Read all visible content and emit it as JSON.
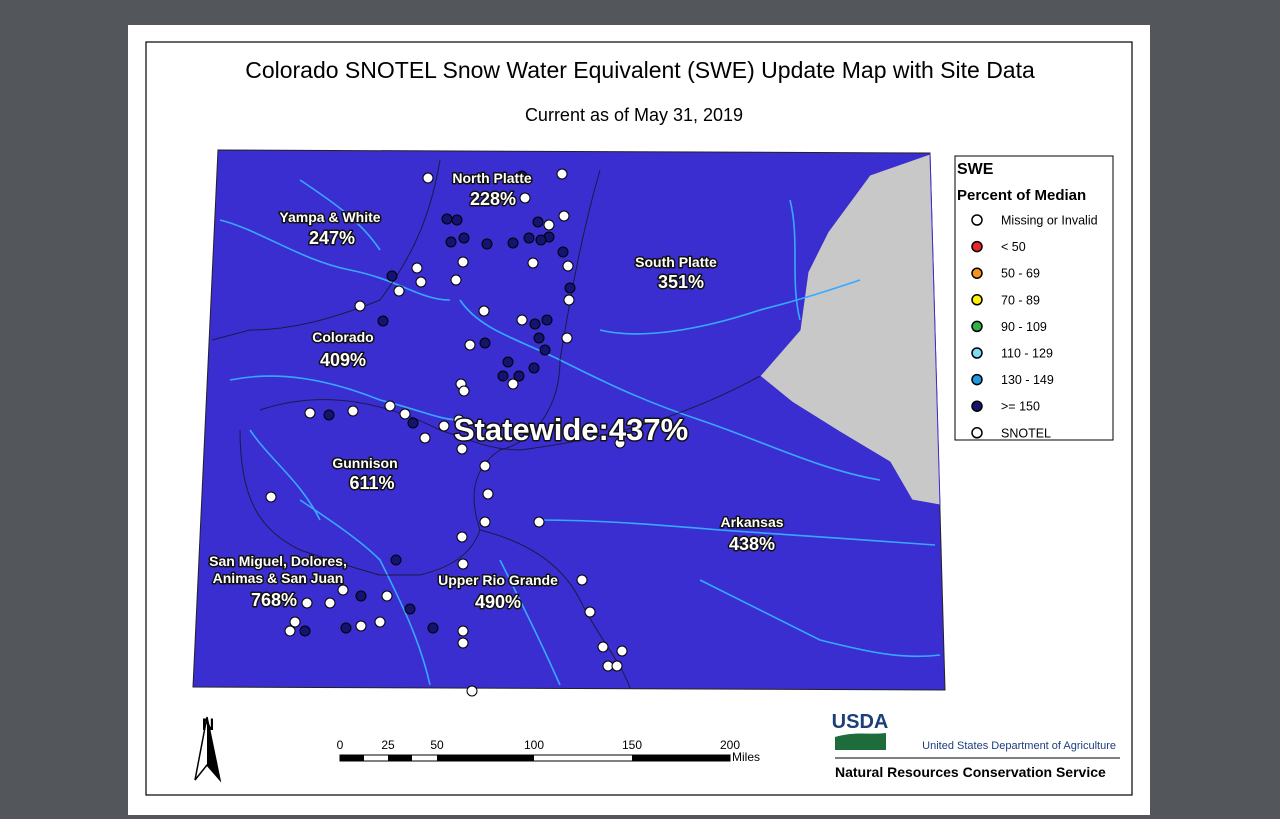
{
  "title": "Colorado SNOTEL Snow Water Equivalent (SWE) Update Map with Site Data",
  "subtitle": "Current as of May 31, 2019",
  "basins": [
    {
      "name": [
        "North Platte"
      ],
      "percent": "228%"
    },
    {
      "name": [
        "Yampa & White"
      ],
      "percent": "247%"
    },
    {
      "name": [
        "South Platte"
      ],
      "percent": "351%"
    },
    {
      "name": [
        "Colorado"
      ],
      "percent": "409%"
    },
    {
      "name": [
        "Gunnison"
      ],
      "percent": "611%"
    },
    {
      "name": [
        "Arkansas"
      ],
      "percent": "438%"
    },
    {
      "name": [
        "San Miguel, Dolores,",
        "Animas & San Juan"
      ],
      "percent": "768%"
    },
    {
      "name": [
        "Upper Rio Grande"
      ],
      "percent": "490%"
    }
  ],
  "statewide": "Statewide:437%",
  "legend": {
    "title": "SWE",
    "subtitle": "Percent of Median",
    "items": [
      {
        "label": "Missing or Invalid",
        "color": "#ffffff"
      },
      {
        "label": "< 50",
        "color": "#e8262b"
      },
      {
        "label": "50 - 69",
        "color": "#f7941d"
      },
      {
        "label": "70 - 89",
        "color": "#fff200"
      },
      {
        "label": "90 - 109",
        "color": "#2db34a"
      },
      {
        "label": "110 - 129",
        "color": "#7fdcf5"
      },
      {
        "label": "130 - 149",
        "color": "#1e9ae0"
      },
      {
        "label": ">= 150",
        "color": "#141470"
      },
      {
        "label": "SNOTEL",
        "color": "#ffffff"
      }
    ]
  },
  "scale": {
    "ticks": [
      "0",
      "25",
      "50",
      "100",
      "150",
      "200"
    ],
    "unit": "Miles"
  },
  "north": "N",
  "logo": {
    "usda": "USDA",
    "department": "United States Department of Agriculture",
    "agency": "Natural Resources Conservation Service"
  }
}
